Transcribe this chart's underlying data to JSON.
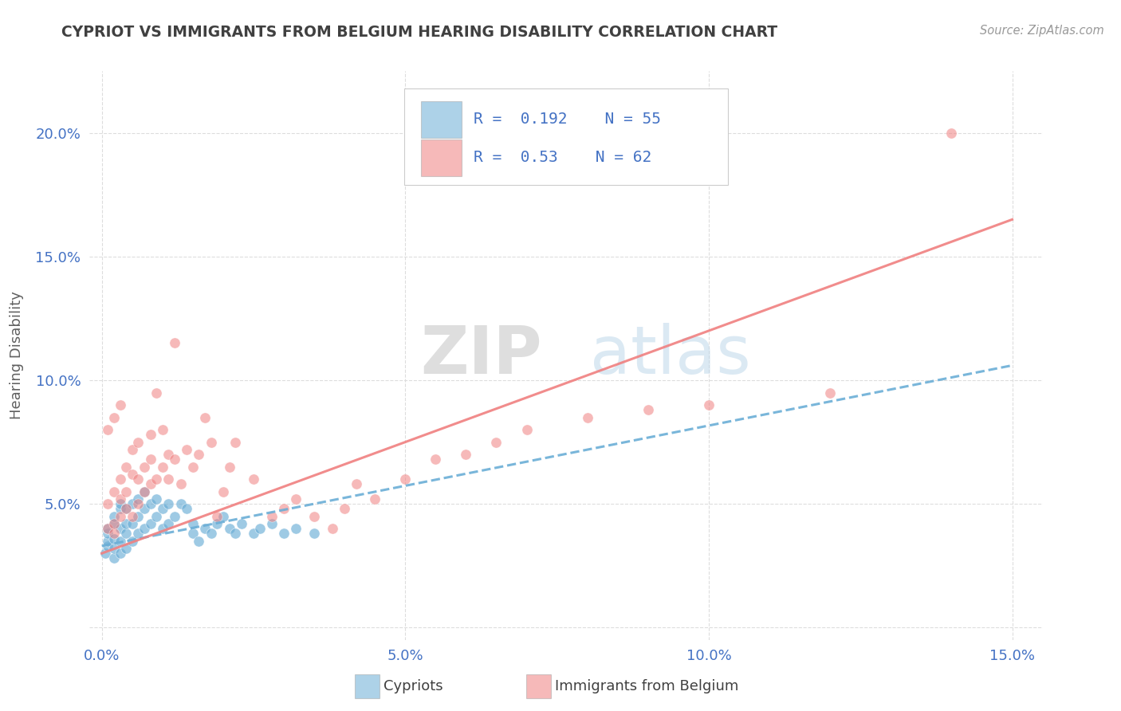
{
  "title": "CYPRIOT VS IMMIGRANTS FROM BELGIUM HEARING DISABILITY CORRELATION CHART",
  "source": "Source: ZipAtlas.com",
  "ylabel": "Hearing Disability",
  "xlim": [
    -0.002,
    0.155
  ],
  "ylim": [
    -0.005,
    0.225
  ],
  "xticks": [
    0.0,
    0.05,
    0.1,
    0.15
  ],
  "yticks": [
    0.0,
    0.05,
    0.1,
    0.15,
    0.2
  ],
  "xticklabels": [
    "0.0%",
    "5.0%",
    "10.0%",
    "15.0%"
  ],
  "yticklabels": [
    "",
    "5.0%",
    "10.0%",
    "15.0%",
    "20.0%"
  ],
  "watermark_zip": "ZIP",
  "watermark_atlas": "atlas",
  "cypriot_color": "#6baed6",
  "belgium_color": "#f08080",
  "cypriot_R": 0.192,
  "cypriot_N": 55,
  "belgium_R": 0.53,
  "belgium_N": 62,
  "legend_label_cypriot": "Cypriots",
  "legend_label_belgium": "Immigrants from Belgium",
  "cypriot_scatter_x": [
    0.0005,
    0.001,
    0.001,
    0.001,
    0.001,
    0.002,
    0.002,
    0.002,
    0.002,
    0.002,
    0.003,
    0.003,
    0.003,
    0.003,
    0.003,
    0.004,
    0.004,
    0.004,
    0.004,
    0.005,
    0.005,
    0.005,
    0.006,
    0.006,
    0.006,
    0.007,
    0.007,
    0.007,
    0.008,
    0.008,
    0.009,
    0.009,
    0.01,
    0.01,
    0.011,
    0.011,
    0.012,
    0.013,
    0.014,
    0.015,
    0.015,
    0.016,
    0.017,
    0.018,
    0.019,
    0.02,
    0.021,
    0.022,
    0.023,
    0.025,
    0.026,
    0.028,
    0.03,
    0.032,
    0.035
  ],
  "cypriot_scatter_y": [
    0.03,
    0.033,
    0.035,
    0.038,
    0.04,
    0.028,
    0.032,
    0.036,
    0.042,
    0.045,
    0.03,
    0.035,
    0.04,
    0.048,
    0.05,
    0.032,
    0.038,
    0.042,
    0.048,
    0.035,
    0.042,
    0.05,
    0.038,
    0.045,
    0.052,
    0.04,
    0.048,
    0.055,
    0.042,
    0.05,
    0.045,
    0.052,
    0.04,
    0.048,
    0.042,
    0.05,
    0.045,
    0.05,
    0.048,
    0.038,
    0.042,
    0.035,
    0.04,
    0.038,
    0.042,
    0.045,
    0.04,
    0.038,
    0.042,
    0.038,
    0.04,
    0.042,
    0.038,
    0.04,
    0.038
  ],
  "belgium_scatter_x": [
    0.001,
    0.001,
    0.001,
    0.002,
    0.002,
    0.002,
    0.002,
    0.003,
    0.003,
    0.003,
    0.003,
    0.004,
    0.004,
    0.004,
    0.005,
    0.005,
    0.005,
    0.006,
    0.006,
    0.006,
    0.007,
    0.007,
    0.008,
    0.008,
    0.008,
    0.009,
    0.009,
    0.01,
    0.01,
    0.011,
    0.011,
    0.012,
    0.012,
    0.013,
    0.014,
    0.015,
    0.016,
    0.017,
    0.018,
    0.019,
    0.02,
    0.021,
    0.022,
    0.025,
    0.028,
    0.03,
    0.032,
    0.035,
    0.038,
    0.04,
    0.042,
    0.045,
    0.05,
    0.055,
    0.06,
    0.065,
    0.07,
    0.08,
    0.09,
    0.1,
    0.12,
    0.14
  ],
  "belgium_scatter_y": [
    0.04,
    0.05,
    0.08,
    0.038,
    0.042,
    0.055,
    0.085,
    0.045,
    0.052,
    0.06,
    0.09,
    0.048,
    0.055,
    0.065,
    0.045,
    0.062,
    0.072,
    0.05,
    0.06,
    0.075,
    0.055,
    0.065,
    0.058,
    0.068,
    0.078,
    0.06,
    0.095,
    0.065,
    0.08,
    0.06,
    0.07,
    0.068,
    0.115,
    0.058,
    0.072,
    0.065,
    0.07,
    0.085,
    0.075,
    0.045,
    0.055,
    0.065,
    0.075,
    0.06,
    0.045,
    0.048,
    0.052,
    0.045,
    0.04,
    0.048,
    0.058,
    0.052,
    0.06,
    0.068,
    0.07,
    0.075,
    0.08,
    0.085,
    0.088,
    0.09,
    0.095,
    0.2
  ],
  "cypriot_line": {
    "x0": 0.0,
    "y0": 0.033,
    "x1": 0.15,
    "y1": 0.106
  },
  "belgium_line": {
    "x0": 0.0,
    "y0": 0.03,
    "x1": 0.15,
    "y1": 0.165
  },
  "background_color": "#ffffff",
  "grid_color": "#dddddd",
  "title_color": "#404040",
  "tick_color": "#4472c4",
  "axis_label_color": "#606060"
}
